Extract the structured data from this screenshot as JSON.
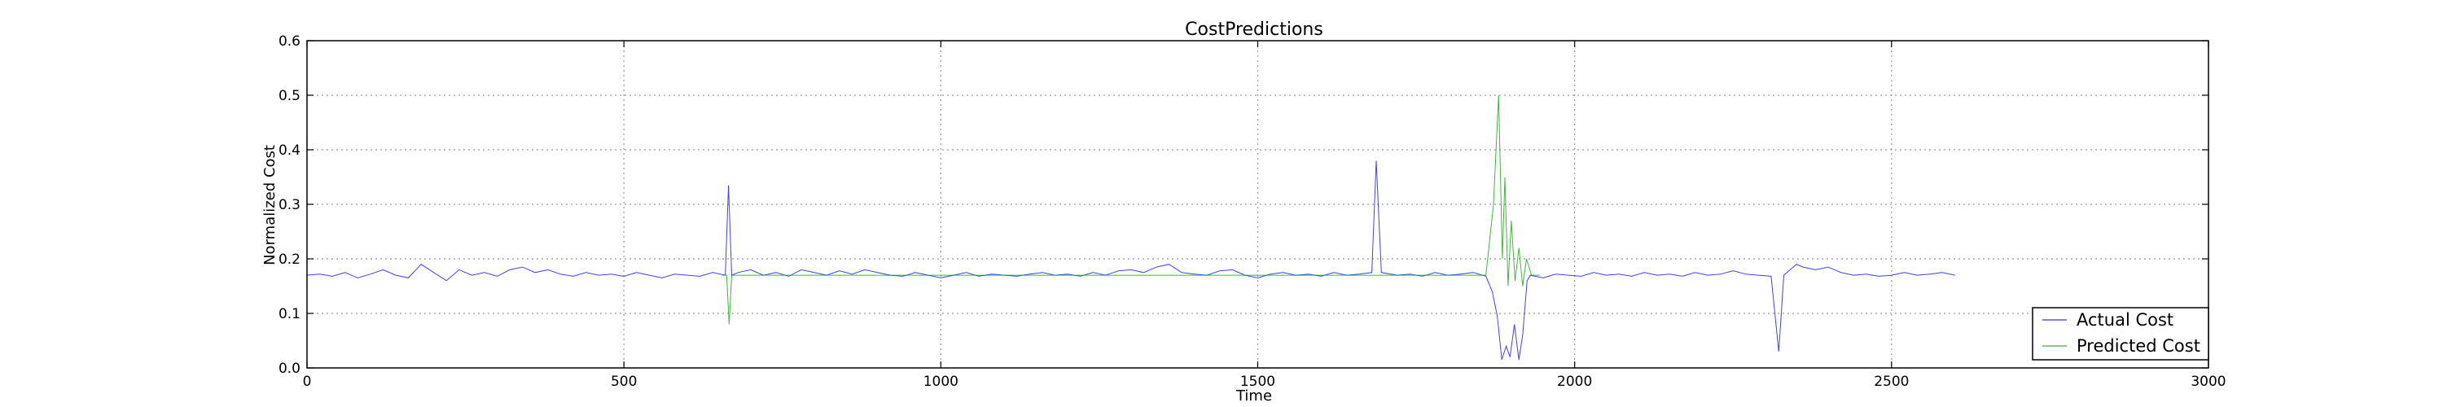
{
  "chart_data": {
    "type": "line",
    "title": "CostPredictions",
    "xlabel": "Time",
    "ylabel": "Normalized Cost",
    "xlim": [
      0,
      3000
    ],
    "ylim": [
      0.0,
      0.6
    ],
    "xticks": [
      0,
      500,
      1000,
      1500,
      2000,
      2500,
      3000
    ],
    "xtick_labels": [
      "0",
      "500",
      "1000",
      "1500",
      "2000",
      "2500",
      "3000"
    ],
    "yticks": [
      0.0,
      0.1,
      0.2,
      0.3,
      0.4,
      0.5,
      0.6
    ],
    "ytick_labels": [
      "0.0",
      "0.1",
      "0.2",
      "0.3",
      "0.4",
      "0.5",
      "0.6"
    ],
    "grid": true,
    "legend_position": "bottom-right",
    "series": [
      {
        "name": "Actual Cost",
        "color": "#0000ff",
        "points": [
          [
            0,
            0.17
          ],
          [
            20,
            0.172
          ],
          [
            40,
            0.168
          ],
          [
            60,
            0.175
          ],
          [
            80,
            0.165
          ],
          [
            100,
            0.172
          ],
          [
            120,
            0.18
          ],
          [
            140,
            0.17
          ],
          [
            160,
            0.165
          ],
          [
            180,
            0.19
          ],
          [
            200,
            0.175
          ],
          [
            220,
            0.16
          ],
          [
            240,
            0.18
          ],
          [
            260,
            0.17
          ],
          [
            280,
            0.175
          ],
          [
            300,
            0.168
          ],
          [
            320,
            0.18
          ],
          [
            340,
            0.185
          ],
          [
            360,
            0.175
          ],
          [
            380,
            0.18
          ],
          [
            400,
            0.172
          ],
          [
            420,
            0.168
          ],
          [
            440,
            0.175
          ],
          [
            460,
            0.17
          ],
          [
            480,
            0.172
          ],
          [
            500,
            0.168
          ],
          [
            520,
            0.175
          ],
          [
            540,
            0.17
          ],
          [
            560,
            0.165
          ],
          [
            580,
            0.172
          ],
          [
            600,
            0.17
          ],
          [
            620,
            0.168
          ],
          [
            640,
            0.175
          ],
          [
            660,
            0.17
          ],
          [
            665,
            0.335
          ],
          [
            670,
            0.17
          ],
          [
            680,
            0.175
          ],
          [
            700,
            0.18
          ],
          [
            720,
            0.17
          ],
          [
            740,
            0.175
          ],
          [
            760,
            0.168
          ],
          [
            780,
            0.18
          ],
          [
            800,
            0.175
          ],
          [
            820,
            0.17
          ],
          [
            840,
            0.178
          ],
          [
            860,
            0.172
          ],
          [
            880,
            0.18
          ],
          [
            900,
            0.175
          ],
          [
            920,
            0.17
          ],
          [
            940,
            0.168
          ],
          [
            960,
            0.175
          ],
          [
            980,
            0.17
          ],
          [
            1000,
            0.165
          ],
          [
            1020,
            0.17
          ],
          [
            1040,
            0.175
          ],
          [
            1060,
            0.168
          ],
          [
            1080,
            0.172
          ],
          [
            1100,
            0.17
          ],
          [
            1120,
            0.168
          ],
          [
            1140,
            0.172
          ],
          [
            1160,
            0.175
          ],
          [
            1180,
            0.17
          ],
          [
            1200,
            0.172
          ],
          [
            1220,
            0.168
          ],
          [
            1240,
            0.175
          ],
          [
            1260,
            0.17
          ],
          [
            1280,
            0.178
          ],
          [
            1300,
            0.18
          ],
          [
            1320,
            0.175
          ],
          [
            1340,
            0.185
          ],
          [
            1360,
            0.19
          ],
          [
            1380,
            0.175
          ],
          [
            1400,
            0.172
          ],
          [
            1420,
            0.17
          ],
          [
            1440,
            0.178
          ],
          [
            1460,
            0.18
          ],
          [
            1480,
            0.17
          ],
          [
            1500,
            0.165
          ],
          [
            1520,
            0.172
          ],
          [
            1540,
            0.175
          ],
          [
            1560,
            0.17
          ],
          [
            1580,
            0.172
          ],
          [
            1600,
            0.168
          ],
          [
            1620,
            0.175
          ],
          [
            1640,
            0.17
          ],
          [
            1660,
            0.172
          ],
          [
            1680,
            0.175
          ],
          [
            1687,
            0.38
          ],
          [
            1695,
            0.175
          ],
          [
            1720,
            0.17
          ],
          [
            1740,
            0.172
          ],
          [
            1760,
            0.168
          ],
          [
            1780,
            0.175
          ],
          [
            1800,
            0.17
          ],
          [
            1820,
            0.172
          ],
          [
            1840,
            0.175
          ],
          [
            1860,
            0.168
          ],
          [
            1870,
            0.14
          ],
          [
            1878,
            0.095
          ],
          [
            1885,
            0.015
          ],
          [
            1892,
            0.04
          ],
          [
            1898,
            0.02
          ],
          [
            1905,
            0.08
          ],
          [
            1912,
            0.015
          ],
          [
            1918,
            0.06
          ],
          [
            1925,
            0.16
          ],
          [
            1930,
            0.17
          ],
          [
            1950,
            0.165
          ],
          [
            1970,
            0.172
          ],
          [
            1990,
            0.17
          ],
          [
            2010,
            0.168
          ],
          [
            2030,
            0.175
          ],
          [
            2050,
            0.17
          ],
          [
            2070,
            0.172
          ],
          [
            2090,
            0.168
          ],
          [
            2110,
            0.175
          ],
          [
            2130,
            0.17
          ],
          [
            2150,
            0.172
          ],
          [
            2170,
            0.168
          ],
          [
            2190,
            0.175
          ],
          [
            2210,
            0.17
          ],
          [
            2230,
            0.172
          ],
          [
            2250,
            0.178
          ],
          [
            2270,
            0.172
          ],
          [
            2290,
            0.17
          ],
          [
            2310,
            0.168
          ],
          [
            2322,
            0.03
          ],
          [
            2330,
            0.17
          ],
          [
            2340,
            0.18
          ],
          [
            2350,
            0.19
          ],
          [
            2360,
            0.185
          ],
          [
            2380,
            0.18
          ],
          [
            2400,
            0.185
          ],
          [
            2420,
            0.175
          ],
          [
            2440,
            0.17
          ],
          [
            2460,
            0.172
          ],
          [
            2480,
            0.168
          ],
          [
            2500,
            0.17
          ],
          [
            2520,
            0.175
          ],
          [
            2540,
            0.17
          ],
          [
            2560,
            0.172
          ],
          [
            2580,
            0.175
          ],
          [
            2600,
            0.17
          ]
        ]
      },
      {
        "name": "Predicted Cost",
        "color": "#00a000",
        "points": [
          [
            655,
            0.17
          ],
          [
            662,
            0.17
          ],
          [
            666,
            0.08
          ],
          [
            670,
            0.17
          ],
          [
            680,
            0.17
          ],
          [
            1860,
            0.17
          ],
          [
            1872,
            0.3
          ],
          [
            1880,
            0.5
          ],
          [
            1886,
            0.2
          ],
          [
            1890,
            0.35
          ],
          [
            1895,
            0.15
          ],
          [
            1900,
            0.27
          ],
          [
            1906,
            0.16
          ],
          [
            1912,
            0.22
          ],
          [
            1918,
            0.15
          ],
          [
            1924,
            0.2
          ],
          [
            1932,
            0.17
          ],
          [
            1945,
            0.17
          ]
        ]
      }
    ]
  }
}
